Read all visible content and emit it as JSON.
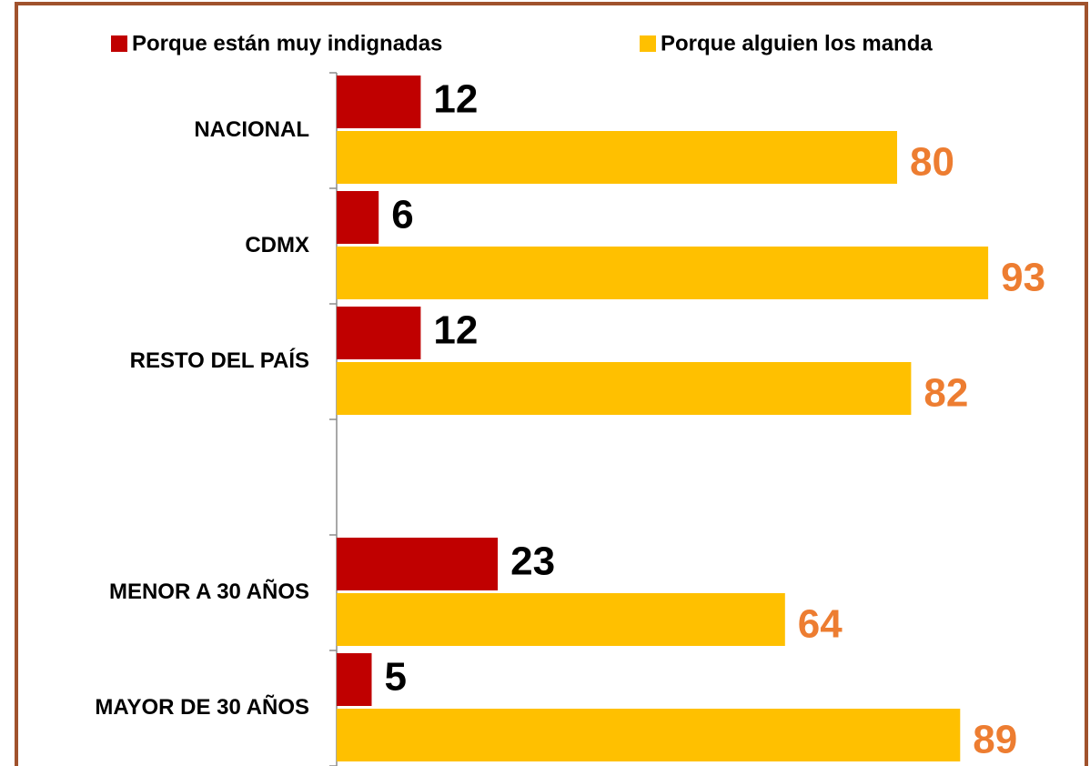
{
  "chart_data": {
    "type": "bar",
    "orientation": "horizontal",
    "categories": [
      "NACIONAL",
      "CDMX",
      "RESTO DEL PAÍS",
      null,
      "MENOR A 30 AÑOS",
      "MAYOR DE 30 AÑOS"
    ],
    "series": [
      {
        "name": "Porque están muy indignadas",
        "color": "#c00000",
        "label_color": "#000000",
        "values": [
          12,
          6,
          12,
          null,
          23,
          5
        ]
      },
      {
        "name": "Porque alguien los manda",
        "color": "#ffc000",
        "label_color": "#ed7d31",
        "values": [
          80,
          93,
          82,
          null,
          64,
          89
        ]
      }
    ],
    "xlim": [
      0,
      100
    ],
    "legend": "top"
  }
}
